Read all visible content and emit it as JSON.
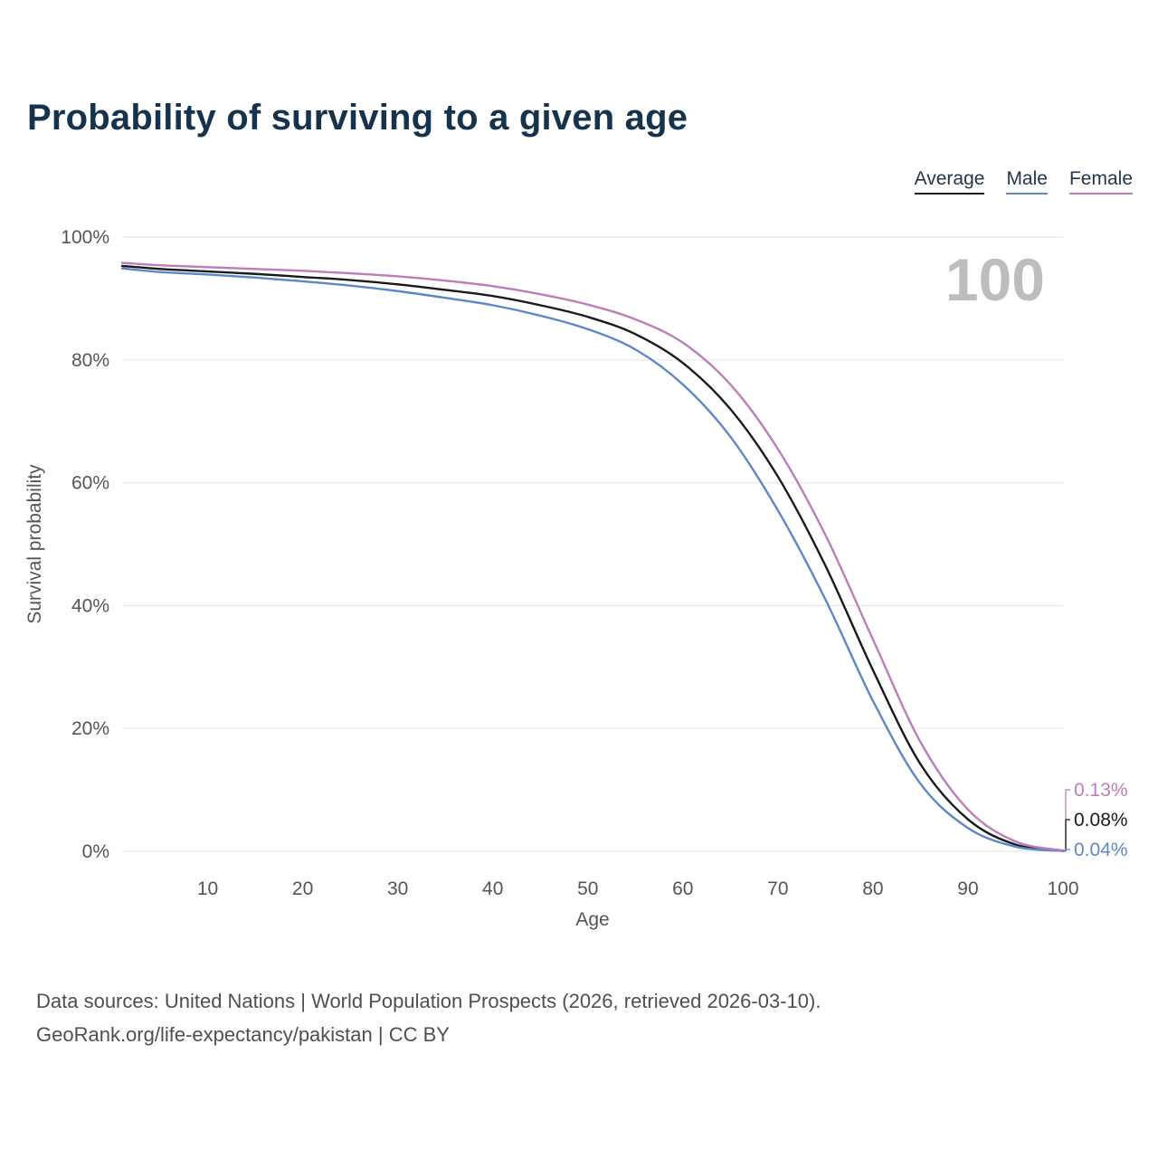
{
  "title": "Probability of surviving to a given age",
  "legend": {
    "items": [
      {
        "label": "Average",
        "color": "#1a1a1a"
      },
      {
        "label": "Male",
        "color": "#5e87c7"
      },
      {
        "label": "Female",
        "color": "#bd7cba"
      }
    ]
  },
  "watermark_label": "100",
  "footer": {
    "line1": "Data sources: United Nations | World Population Prospects (2026, retrieved 2026-03-10).",
    "line2": "GeoRank.org/life-expectancy/pakistan | CC BY"
  },
  "colors": {
    "title": "#16334d",
    "grid": "#e8e8ea",
    "tick": "#555555",
    "watermark": "#bdbdbd",
    "footer": "#4f4f4f"
  },
  "chart_data": {
    "type": "line",
    "title": "Probability of surviving to a given age",
    "xlabel": "Age",
    "ylabel": "Survival probability",
    "xlim": [
      1,
      100
    ],
    "ylim": [
      0,
      100
    ],
    "grid": true,
    "legend_position": "top-right",
    "x_ticks": [
      10,
      20,
      30,
      40,
      50,
      60,
      70,
      80,
      90,
      100
    ],
    "y_ticks": [
      0,
      20,
      40,
      60,
      80,
      100
    ],
    "y_tick_suffix": "%",
    "x": [
      1,
      5,
      10,
      15,
      20,
      25,
      30,
      35,
      40,
      45,
      50,
      55,
      60,
      65,
      70,
      75,
      80,
      85,
      90,
      95,
      100
    ],
    "series": [
      {
        "name": "Average",
        "color": "#1a1a1a",
        "end_label": "0.08%",
        "values": [
          95.3,
          94.8,
          94.4,
          94.0,
          93.5,
          93.0,
          92.3,
          91.4,
          90.4,
          88.9,
          87.0,
          84.2,
          79.5,
          72.0,
          61.0,
          46.5,
          29.5,
          14.2,
          5.2,
          1.1,
          0.08
        ]
      },
      {
        "name": "Male",
        "color": "#5e87c7",
        "end_label": "0.04%",
        "values": [
          94.9,
          94.3,
          93.9,
          93.4,
          92.8,
          92.1,
          91.2,
          90.1,
          88.9,
          87.2,
          85.0,
          81.7,
          76.0,
          67.5,
          55.5,
          41.0,
          24.5,
          11.0,
          3.8,
          0.75,
          0.04
        ]
      },
      {
        "name": "Female",
        "color": "#bd7cba",
        "end_label": "0.13%",
        "values": [
          95.8,
          95.4,
          95.1,
          94.8,
          94.5,
          94.1,
          93.6,
          92.9,
          92.0,
          90.7,
          89.0,
          86.6,
          82.8,
          76.0,
          65.5,
          51.5,
          34.5,
          17.8,
          6.8,
          1.6,
          0.13
        ]
      }
    ]
  }
}
